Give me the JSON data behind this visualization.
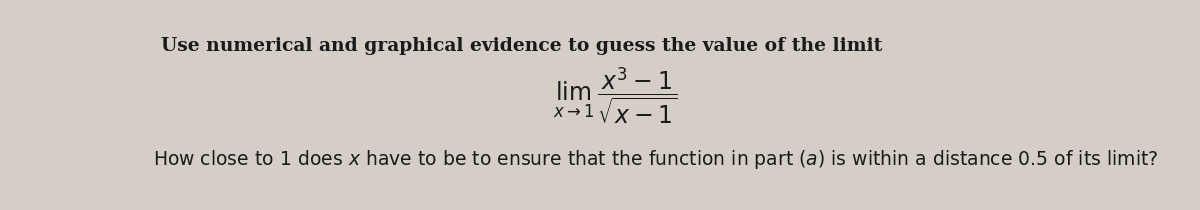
{
  "background_color": "#d4cec6",
  "fig_width": 12.0,
  "fig_height": 2.1,
  "dpi": 100,
  "line1_text": "Use numerical and graphical evidence to guess the value of the limit",
  "line1_fontsize": 13.5,
  "line2_fontsize": 13.5,
  "math_fontsize": 17,
  "text_color": "#1a1a1a"
}
